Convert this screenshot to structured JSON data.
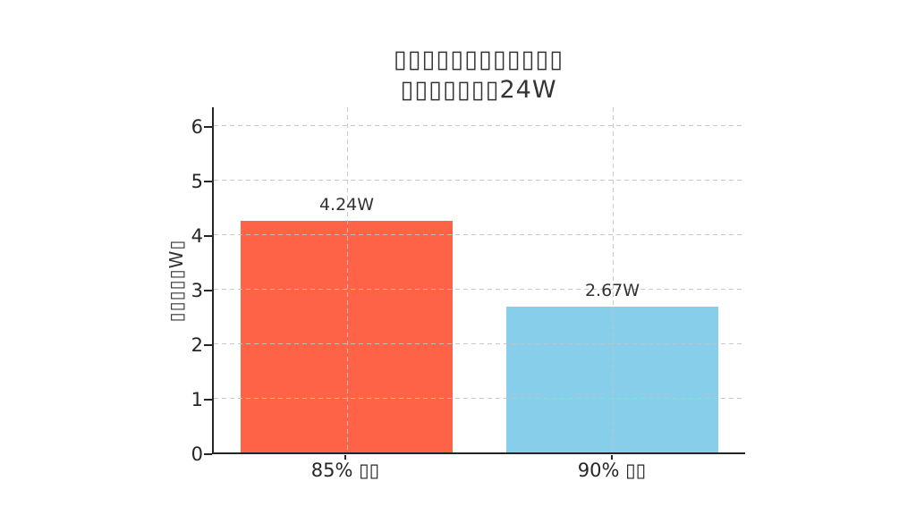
{
  "title": {
    "line1": "▯▯▯▯▯▯▯▯▯▯▯▯",
    "line2": "▯▯▯▯▯▯▯24W"
  },
  "y_axis": {
    "label": "▯▯▯▯▯W▯",
    "ticks": [
      "0",
      "1",
      "2",
      "3",
      "4",
      "5",
      "6"
    ]
  },
  "x_axis": {
    "tick_labels": [
      "85% ▯▯",
      "90% ▯▯"
    ]
  },
  "bars": [
    {
      "category": "85% ▯▯",
      "value": 4.24,
      "label": "4.24W",
      "color": "#FF6347"
    },
    {
      "category": "90% ▯▯",
      "value": 2.67,
      "label": "2.67W",
      "color": "#87CEEB"
    }
  ],
  "colors": {
    "bar_left": "#FF6347",
    "bar_right": "#87CEEB",
    "axis": "#262626",
    "text": "#333333",
    "grid": "#c3c3c3",
    "background": "#ffffff"
  },
  "chart_data": {
    "type": "bar",
    "title": "▯▯▯▯▯▯▯▯▯▯▯▯ ▯▯▯▯▯▯▯24W",
    "categories": [
      "85% ▯▯",
      "90% ▯▯"
    ],
    "values": [
      4.24,
      2.67
    ],
    "value_labels": [
      "4.24W",
      "2.67W"
    ],
    "series_colors": [
      "#FF6347",
      "#87CEEB"
    ],
    "xlabel": "",
    "ylabel": "▯▯▯▯▯W▯",
    "ylim": [
      0,
      6.36
    ],
    "yticks": [
      0,
      1,
      2,
      3,
      4,
      5,
      6
    ],
    "grid": true,
    "grid_style": "dashed, drawn above bars",
    "legend_position": "none"
  }
}
